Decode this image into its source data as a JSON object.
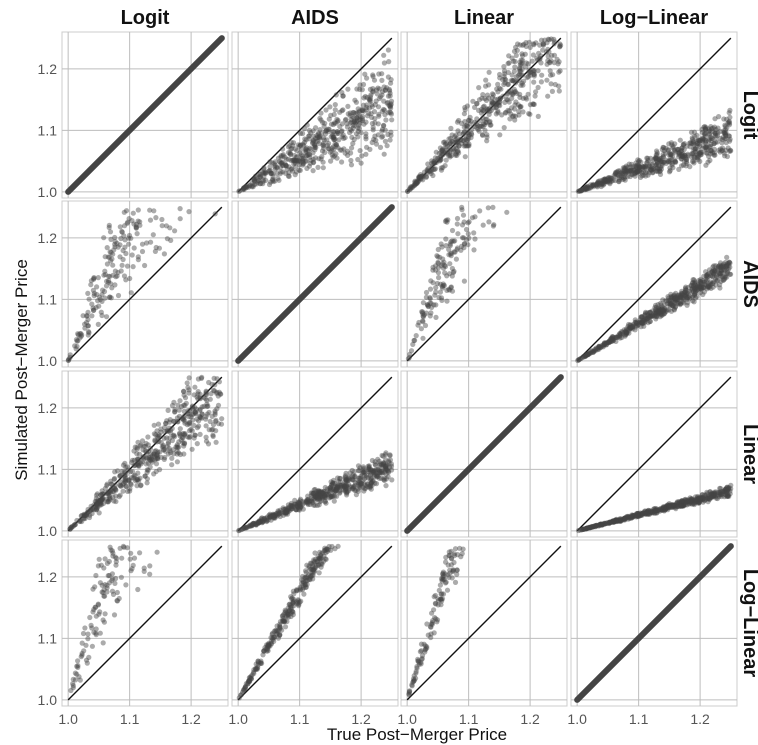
{
  "chart_data": {
    "type": "scatter",
    "columns": [
      "Logit",
      "AIDS",
      "Linear",
      "Log−Linear"
    ],
    "rows": [
      "Logit",
      "AIDS",
      "Linear",
      "Log−Linear"
    ],
    "xlabel": "True Post−Merger Price",
    "ylabel": "Simulated Post−Merger Price",
    "xlim": [
      0.99,
      1.26
    ],
    "ylim": [
      0.99,
      1.26
    ],
    "x_ticks": [
      "1.0",
      "1.1",
      "1.2"
    ],
    "y_ticks": [
      "1.0",
      "1.1",
      "1.2"
    ],
    "x_tick_values": [
      1.0,
      1.1,
      1.2
    ],
    "y_tick_values": [
      1.0,
      1.1,
      1.2
    ],
    "grid": true,
    "reference_line": "y = x",
    "point_color": "#444444",
    "panels": [
      {
        "row": "Logit",
        "col": "Logit",
        "pattern": "identity",
        "slope_low": 1.0,
        "slope_high": 1.0
      },
      {
        "row": "Logit",
        "col": "AIDS",
        "pattern": "below",
        "slope_low": 0.2,
        "slope_high": 1.0
      },
      {
        "row": "Logit",
        "col": "Linear",
        "pattern": "mixed",
        "slope_low": 0.55,
        "slope_high": 1.5
      },
      {
        "row": "Logit",
        "col": "Log−Linear",
        "pattern": "below",
        "slope_low": 0.2,
        "slope_high": 0.55
      },
      {
        "row": "AIDS",
        "col": "Logit",
        "pattern": "above",
        "slope_low": 0.95,
        "slope_high": 3.5
      },
      {
        "row": "AIDS",
        "col": "AIDS",
        "pattern": "identity",
        "slope_low": 1.0,
        "slope_high": 1.0
      },
      {
        "row": "AIDS",
        "col": "Linear",
        "pattern": "above",
        "slope_low": 1.3,
        "slope_high": 3.8
      },
      {
        "row": "AIDS",
        "col": "Log−Linear",
        "pattern": "below",
        "slope_low": 0.5,
        "slope_high": 0.72
      },
      {
        "row": "Linear",
        "col": "Logit",
        "pattern": "mixed",
        "slope_low": 0.55,
        "slope_high": 1.3
      },
      {
        "row": "Linear",
        "col": "AIDS",
        "pattern": "below",
        "slope_low": 0.3,
        "slope_high": 0.55
      },
      {
        "row": "Linear",
        "col": "Linear",
        "pattern": "identity",
        "slope_low": 1.0,
        "slope_high": 1.0
      },
      {
        "row": "Linear",
        "col": "Log−Linear",
        "pattern": "below",
        "slope_low": 0.22,
        "slope_high": 0.3
      },
      {
        "row": "Log−Linear",
        "col": "Logit",
        "pattern": "above",
        "slope_low": 1.5,
        "slope_high": 5.0
      },
      {
        "row": "Log−Linear",
        "col": "AIDS",
        "pattern": "above",
        "slope_low": 1.5,
        "slope_high": 2.0
      },
      {
        "row": "Log−Linear",
        "col": "Linear",
        "pattern": "above",
        "slope_low": 2.3,
        "slope_high": 4.0
      },
      {
        "row": "Log−Linear",
        "col": "Log−Linear",
        "pattern": "identity",
        "slope_low": 1.0,
        "slope_high": 1.0
      }
    ]
  }
}
